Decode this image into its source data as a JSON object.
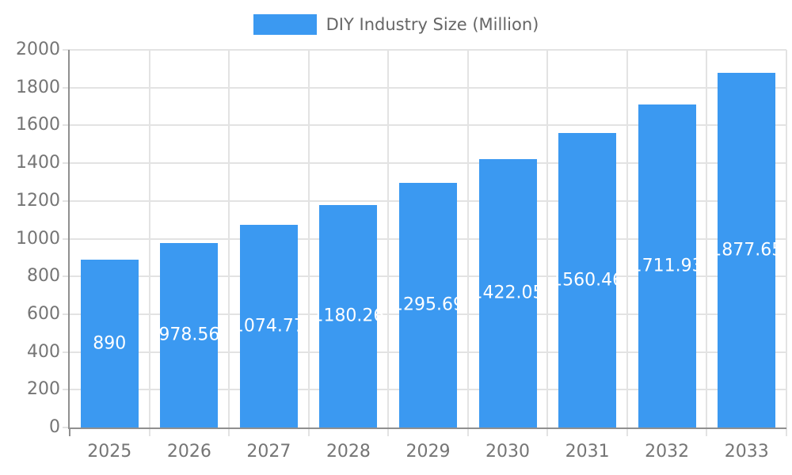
{
  "legend": {
    "label": "DIY Industry Size (Million)"
  },
  "colors": {
    "bar": "#3B99F1",
    "grid": "#E3E3E3",
    "axis": "#8F8F8F",
    "tick_label": "#757575",
    "legend_text": "#666666",
    "value_label": "#FFFFFF",
    "background": "#FFFFFF"
  },
  "chart_data": {
    "type": "bar",
    "title": "DIY Industry Size (Million)",
    "categories": [
      "2025",
      "2026",
      "2027",
      "2028",
      "2029",
      "2030",
      "2031",
      "2032",
      "2033"
    ],
    "values": [
      890,
      978.56,
      1074.77,
      1180.26,
      1295.69,
      1422.05,
      1560.46,
      1711.93,
      1877.65
    ],
    "value_labels": [
      "890",
      "978.56",
      "1074.77",
      "1180.26",
      "1295.69",
      "1422.05",
      "1560.46",
      "1711.93",
      "1877.65"
    ],
    "xlabel": "",
    "ylabel": "",
    "ylim": [
      0,
      2000
    ],
    "ytick_step": 200,
    "grid": true,
    "legend_position": "top",
    "series_color": "#3B99F1"
  }
}
